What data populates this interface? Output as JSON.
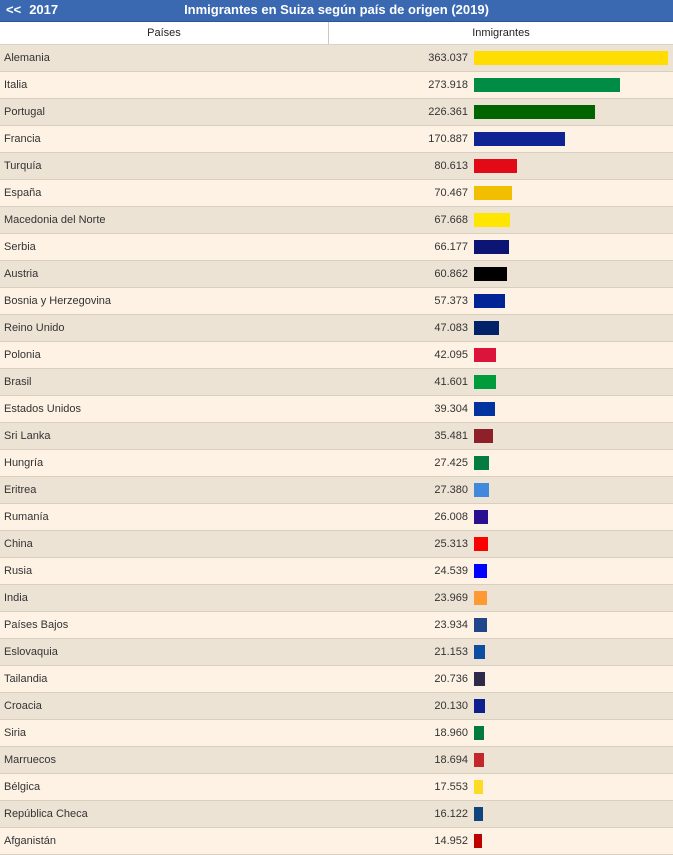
{
  "nav": {
    "prev_year": "2017",
    "prev_arrows": "<<"
  },
  "title": "Inmigrantes en Suiza según país de origen (2019)",
  "columns": {
    "country": "Países",
    "value": "Inmigrantes"
  },
  "chart_data": {
    "type": "bar",
    "orientation": "horizontal",
    "title": "Inmigrantes en Suiza según país de origen (2019)",
    "categories": [
      "Alemania",
      "Italia",
      "Portugal",
      "Francia",
      "Turquía",
      "España",
      "Macedonia del Norte",
      "Serbia",
      "Austria",
      "Bosnia y Herzegovina",
      "Reino Unido",
      "Polonia",
      "Brasil",
      "Estados Unidos",
      "Sri Lanka",
      "Hungría",
      "Eritrea",
      "Rumanía",
      "China",
      "Rusia",
      "India",
      "Países Bajos",
      "Eslovaquia",
      "Tailandia",
      "Croacia",
      "Siria",
      "Marruecos",
      "Bélgica",
      "República Checa",
      "Afganistán"
    ],
    "values": [
      363037,
      273918,
      226361,
      170887,
      80613,
      70467,
      67668,
      66177,
      60862,
      57373,
      47083,
      42095,
      41601,
      39304,
      35481,
      27425,
      27380,
      26008,
      25313,
      24539,
      23969,
      23934,
      21153,
      20736,
      20130,
      18960,
      18694,
      17553,
      16122,
      14952
    ],
    "value_labels": [
      "363.037",
      "273.918",
      "226.361",
      "170.887",
      "80.613",
      "70.467",
      "67.668",
      "66.177",
      "60.862",
      "57.373",
      "47.083",
      "42.095",
      "41.601",
      "39.304",
      "35.481",
      "27.425",
      "27.380",
      "26.008",
      "25.313",
      "24.539",
      "23.969",
      "23.934",
      "21.153",
      "20.736",
      "20.130",
      "18.960",
      "18.694",
      "17.553",
      "16.122",
      "14.952"
    ],
    "colors": [
      "#ffdd00",
      "#008c45",
      "#006400",
      "#0f2394",
      "#e30a17",
      "#f1bf00",
      "#ffe600",
      "#0c1574",
      "#000000",
      "#002395",
      "#012169",
      "#dc143c",
      "#009b3a",
      "#0033a0",
      "#8d2029",
      "#047c40",
      "#4189dd",
      "#2b0f91",
      "#ff0000",
      "#0000ff",
      "#ff9933",
      "#21468b",
      "#0b4ea2",
      "#2d2a4a",
      "#0e1f8f",
      "#007a3d",
      "#c1272d",
      "#fdda24",
      "#11457e",
      "#be0000"
    ],
    "xlim": [
      0,
      363037
    ]
  }
}
